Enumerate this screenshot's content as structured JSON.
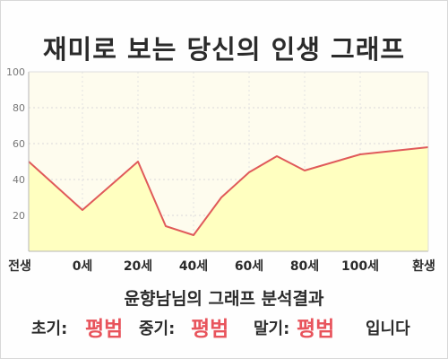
{
  "title": "재미로 보는 당신의 인생 그래프",
  "chart_data": {
    "type": "area",
    "title": "재미로 보는 당신의 인생 그래프",
    "xlabel": "",
    "ylabel": "",
    "ylim": [
      0,
      100
    ],
    "y_ticks": [
      "100",
      "80",
      "60",
      "40",
      "20"
    ],
    "x_tick_labels": [
      "전생",
      "0세",
      "20세",
      "40세",
      "60세",
      "80세",
      "100세",
      "환생"
    ],
    "grid": true,
    "fill_color": "#ffffc0",
    "line_color": "#e05a5a",
    "points": [
      {
        "x": -0.5,
        "y": 50
      },
      {
        "x": 0,
        "y": 23
      },
      {
        "x": 1,
        "y": 50
      },
      {
        "x": 1.5,
        "y": 14
      },
      {
        "x": 2,
        "y": 9
      },
      {
        "x": 2.5,
        "y": 30
      },
      {
        "x": 3,
        "y": 44
      },
      {
        "x": 3.5,
        "y": 53
      },
      {
        "x": 4,
        "y": 45
      },
      {
        "x": 5,
        "y": 54
      },
      {
        "x": 6,
        "y": 58
      }
    ]
  },
  "summary": {
    "line1": "윤향남님의 그래프 분석결과",
    "early_label": "초기:",
    "early_value": "평범",
    "mid_label": "중기:",
    "mid_value": "평범",
    "late_label": "말기:",
    "late_value": "평범",
    "ending": "입니다"
  },
  "colors": {
    "accent_red": "#e8545c",
    "text": "#2b2b2b"
  }
}
